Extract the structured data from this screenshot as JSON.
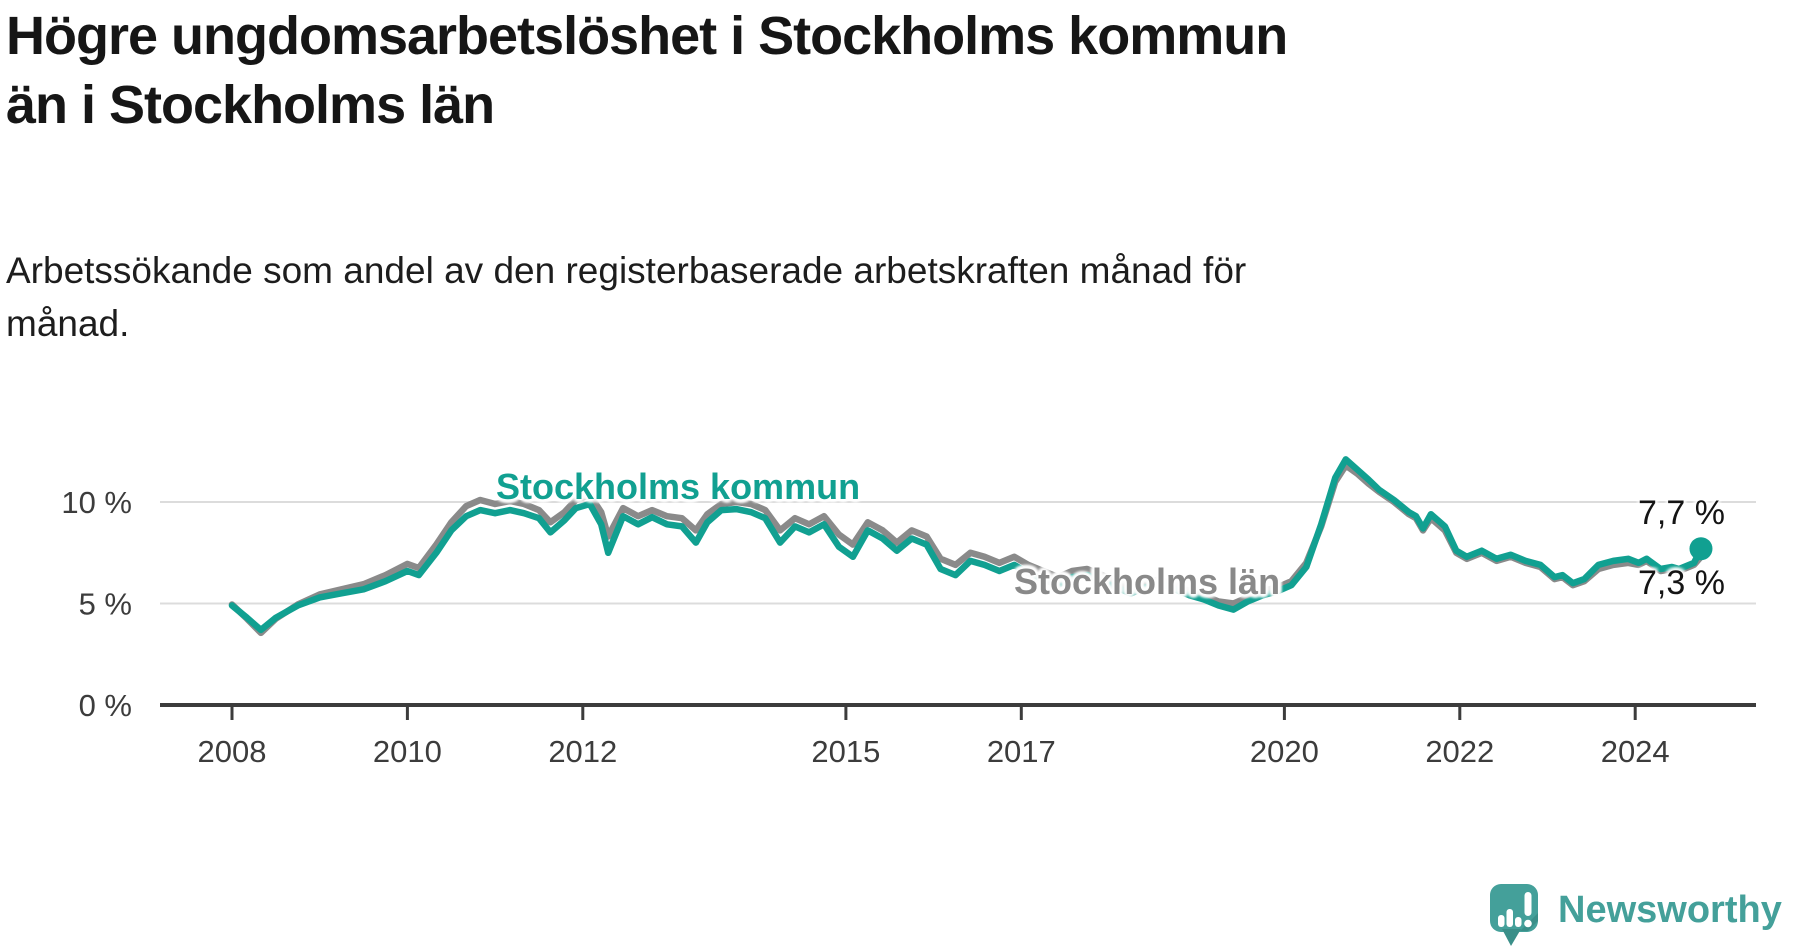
{
  "header": {
    "title_line1": "Högre ungdomsarbetslöshet i Stockholms kommun",
    "title_line2": "än i Stockholms län",
    "subtitle": "Arbetssökande som andel av den registerbaserade arbetskraften månad för månad."
  },
  "chart_data": {
    "type": "line",
    "title": "Högre ungdomsarbetslöshet i Stockholms kommun än i Stockholms län",
    "xlabel": "",
    "ylabel": "",
    "unit": "%",
    "grid": "horizontal",
    "legend_position": "inline-labels-on-lines",
    "xlim": [
      2007.2,
      2025.4
    ],
    "ylim": [
      0,
      16
    ],
    "x_ticks": [
      {
        "value": 2008,
        "label": "2008"
      },
      {
        "value": 2010,
        "label": "2010"
      },
      {
        "value": 2012,
        "label": "2012"
      },
      {
        "value": 2015,
        "label": "2015"
      },
      {
        "value": 2017,
        "label": "2017"
      },
      {
        "value": 2020,
        "label": "2020"
      },
      {
        "value": 2022,
        "label": "2022"
      },
      {
        "value": 2024,
        "label": "2024"
      }
    ],
    "y_ticks": [
      {
        "value": 0,
        "label": "0 %"
      },
      {
        "value": 5,
        "label": "5 %"
      },
      {
        "value": 10,
        "label": "10 %"
      }
    ],
    "series": [
      {
        "name": "Stockholms län",
        "color": "#8a8a8a",
        "label_text": "Stockholms län",
        "end_label": "7,3 %",
        "end_dot": false,
        "x": [
          2008.0,
          2008.17,
          2008.33,
          2008.5,
          2008.75,
          2009.0,
          2009.25,
          2009.5,
          2009.75,
          2010.0,
          2010.13,
          2010.33,
          2010.5,
          2010.67,
          2010.83,
          2011.0,
          2011.17,
          2011.33,
          2011.5,
          2011.63,
          2011.79,
          2011.92,
          2012.08,
          2012.21,
          2012.29,
          2012.46,
          2012.63,
          2012.79,
          2012.96,
          2013.13,
          2013.29,
          2013.42,
          2013.58,
          2013.75,
          2013.92,
          2014.08,
          2014.25,
          2014.42,
          2014.58,
          2014.75,
          2014.92,
          2015.08,
          2015.25,
          2015.42,
          2015.58,
          2015.75,
          2015.92,
          2016.08,
          2016.25,
          2016.42,
          2016.58,
          2016.75,
          2016.92,
          2017.08,
          2017.25,
          2017.42,
          2017.58,
          2017.75,
          2017.92,
          2018.08,
          2018.25,
          2018.42,
          2018.58,
          2018.75,
          2018.92,
          2019.08,
          2019.25,
          2019.42,
          2019.58,
          2019.75,
          2019.92,
          2020.08,
          2020.25,
          2020.42,
          2020.58,
          2020.7,
          2020.83,
          2020.96,
          2021.08,
          2021.25,
          2021.42,
          2021.5,
          2021.58,
          2021.67,
          2021.83,
          2021.96,
          2022.08,
          2022.25,
          2022.42,
          2022.58,
          2022.75,
          2022.92,
          2023.08,
          2023.17,
          2023.29,
          2023.42,
          2023.58,
          2023.75,
          2023.92,
          2024.04,
          2024.13,
          2024.29,
          2024.42,
          2024.5,
          2024.67,
          2024.75
        ],
        "values": [
          4.95,
          4.25,
          3.55,
          4.25,
          4.95,
          5.45,
          5.7,
          5.95,
          6.4,
          6.95,
          6.75,
          7.9,
          9.0,
          9.8,
          10.1,
          9.9,
          10.05,
          9.9,
          9.6,
          9.0,
          9.5,
          10.1,
          10.35,
          9.5,
          8.3,
          9.7,
          9.3,
          9.6,
          9.3,
          9.2,
          8.6,
          9.4,
          9.9,
          10.0,
          9.9,
          9.6,
          8.6,
          9.2,
          8.9,
          9.3,
          8.4,
          7.9,
          9.0,
          8.6,
          8.0,
          8.6,
          8.3,
          7.2,
          6.9,
          7.5,
          7.3,
          7.0,
          7.3,
          6.9,
          6.6,
          6.3,
          6.6,
          6.7,
          6.4,
          6.1,
          5.8,
          6.0,
          6.2,
          5.9,
          5.6,
          5.4,
          5.1,
          5.0,
          5.3,
          5.6,
          5.8,
          6.1,
          7.0,
          8.8,
          11.0,
          11.8,
          11.4,
          10.9,
          10.5,
          10.0,
          9.4,
          9.2,
          8.6,
          9.2,
          8.6,
          7.5,
          7.2,
          7.5,
          7.1,
          7.3,
          7.0,
          6.8,
          6.2,
          6.3,
          5.9,
          6.1,
          6.7,
          6.9,
          7.0,
          6.9,
          7.1,
          6.6,
          6.7,
          6.6,
          6.9,
          7.3
        ]
      },
      {
        "name": "Stockholms kommun",
        "color": "#11a091",
        "label_text": "Stockholms kommun",
        "end_label": "7,7 %",
        "end_dot": true,
        "x": [
          2008.0,
          2008.17,
          2008.33,
          2008.5,
          2008.75,
          2009.0,
          2009.25,
          2009.5,
          2009.75,
          2010.0,
          2010.13,
          2010.33,
          2010.5,
          2010.67,
          2010.83,
          2011.0,
          2011.17,
          2011.33,
          2011.5,
          2011.63,
          2011.79,
          2011.92,
          2012.08,
          2012.21,
          2012.29,
          2012.46,
          2012.63,
          2012.79,
          2012.96,
          2013.13,
          2013.29,
          2013.42,
          2013.58,
          2013.75,
          2013.92,
          2014.08,
          2014.25,
          2014.42,
          2014.58,
          2014.75,
          2014.92,
          2015.08,
          2015.25,
          2015.42,
          2015.58,
          2015.75,
          2015.92,
          2016.08,
          2016.25,
          2016.42,
          2016.58,
          2016.75,
          2016.92,
          2017.08,
          2017.25,
          2017.42,
          2017.58,
          2017.75,
          2017.92,
          2018.08,
          2018.25,
          2018.42,
          2018.58,
          2018.75,
          2018.92,
          2019.08,
          2019.25,
          2019.42,
          2019.58,
          2019.75,
          2019.92,
          2020.08,
          2020.25,
          2020.42,
          2020.58,
          2020.7,
          2020.83,
          2020.96,
          2021.08,
          2021.25,
          2021.42,
          2021.5,
          2021.58,
          2021.67,
          2021.83,
          2021.96,
          2022.08,
          2022.25,
          2022.42,
          2022.58,
          2022.75,
          2022.92,
          2023.08,
          2023.17,
          2023.29,
          2023.42,
          2023.58,
          2023.75,
          2023.92,
          2024.04,
          2024.13,
          2024.29,
          2024.42,
          2024.5,
          2024.67,
          2024.75
        ],
        "values": [
          4.9,
          4.3,
          3.7,
          4.3,
          4.9,
          5.3,
          5.5,
          5.7,
          6.1,
          6.6,
          6.4,
          7.5,
          8.6,
          9.3,
          9.6,
          9.45,
          9.6,
          9.45,
          9.2,
          8.5,
          9.1,
          9.7,
          9.9,
          8.9,
          7.5,
          9.3,
          8.9,
          9.25,
          8.9,
          8.8,
          8.0,
          9.0,
          9.6,
          9.65,
          9.5,
          9.2,
          8.0,
          8.8,
          8.5,
          8.9,
          7.8,
          7.3,
          8.6,
          8.2,
          7.6,
          8.2,
          7.9,
          6.7,
          6.4,
          7.1,
          6.9,
          6.6,
          6.9,
          6.5,
          6.2,
          5.9,
          6.3,
          6.4,
          6.1,
          5.8,
          5.5,
          5.8,
          6.0,
          5.7,
          5.4,
          5.2,
          4.9,
          4.7,
          5.1,
          5.4,
          5.6,
          5.9,
          6.8,
          8.9,
          11.2,
          12.1,
          11.6,
          11.1,
          10.6,
          10.1,
          9.5,
          9.3,
          8.7,
          9.4,
          8.8,
          7.6,
          7.3,
          7.6,
          7.2,
          7.4,
          7.1,
          6.9,
          6.3,
          6.4,
          6.0,
          6.2,
          6.9,
          7.1,
          7.2,
          7.0,
          7.2,
          6.7,
          6.8,
          6.7,
          7.0,
          7.7
        ]
      }
    ],
    "style": {
      "grid_color": "#dcdcdc",
      "axis_color": "#3c3c3c",
      "tick_label_color": "#3c3c3c"
    }
  },
  "logo": {
    "name": "Newsworthy",
    "icon": "newsworthy-bar-chart-bubble-icon",
    "color": "#44a09a"
  }
}
